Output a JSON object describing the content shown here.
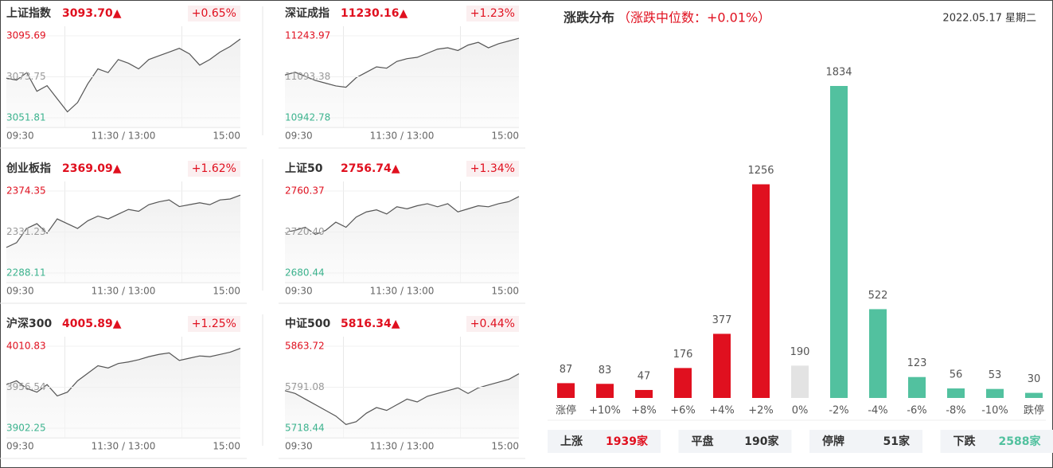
{
  "chart_data": [
    {
      "type": "line",
      "title": "上证指数",
      "price": "3093.70▲",
      "change": "+0.65%",
      "color": "#555555",
      "ylim": [
        3051.81,
        3095.69
      ],
      "yticks": [
        3051.81,
        3073.75,
        3095.69
      ],
      "xtick_labels": [
        "09:30",
        "11:30 / 13:00",
        "15:00"
      ],
      "values": [
        3073,
        3072,
        3076,
        3066,
        3069,
        3062,
        3055,
        3060,
        3070,
        3078,
        3076,
        3083,
        3081,
        3078,
        3083,
        3085,
        3087,
        3089,
        3086,
        3080,
        3083,
        3087,
        3090,
        3094
      ]
    },
    {
      "type": "line",
      "title": "深证成指",
      "price": "11230.16▲",
      "change": "+1.23%",
      "color": "#555555",
      "ylim": [
        10942.78,
        11243.97
      ],
      "yticks": [
        10942.78,
        11093.38,
        11243.97
      ],
      "xtick_labels": [
        "09:30",
        "11:30 / 13:00",
        "15:00"
      ],
      "values": [
        11100,
        11110,
        11095,
        11080,
        11070,
        11060,
        11055,
        11090,
        11110,
        11130,
        11125,
        11150,
        11160,
        11165,
        11180,
        11195,
        11200,
        11190,
        11210,
        11220,
        11200,
        11215,
        11225,
        11235
      ]
    },
    {
      "type": "line",
      "title": "创业板指",
      "price": "2369.09▲",
      "change": "+1.62%",
      "color": "#555555",
      "ylim": [
        2288.11,
        2374.35
      ],
      "yticks": [
        2288.11,
        2331.23,
        2374.35
      ],
      "xtick_labels": [
        "09:30",
        "11:30 / 13:00",
        "15:00"
      ],
      "values": [
        2315,
        2320,
        2335,
        2340,
        2330,
        2345,
        2340,
        2335,
        2343,
        2348,
        2345,
        2350,
        2355,
        2353,
        2360,
        2363,
        2365,
        2358,
        2360,
        2362,
        2360,
        2365,
        2366,
        2370
      ]
    },
    {
      "type": "line",
      "title": "上证50",
      "price": "2756.74▲",
      "change": "+1.34%",
      "color": "#555555",
      "ylim": [
        2680.44,
        2760.37
      ],
      "yticks": [
        2680.44,
        {
          "value": 2720.4,
          "label": "2720.40"
        },
        2760.37
      ],
      "xtick_labels": [
        "09:30",
        "11:30 / 13:00",
        "15:00"
      ],
      "values": [
        2720,
        2722,
        2725,
        2718,
        2722,
        2730,
        2725,
        2735,
        2740,
        2742,
        2738,
        2745,
        2743,
        2746,
        2748,
        2745,
        2748,
        2740,
        2743,
        2746,
        2745,
        2748,
        2750,
        2755
      ]
    },
    {
      "type": "line",
      "title": "沪深300",
      "price": "4005.89▲",
      "change": "+1.25%",
      "color": "#555555",
      "ylim": [
        3902.25,
        4010.83
      ],
      "yticks": [
        3902.25,
        3956.54,
        4010.83
      ],
      "xtick_labels": [
        "09:30",
        "11:30 / 13:00",
        "15:00"
      ],
      "values": [
        3960,
        3965,
        3955,
        3950,
        3960,
        3945,
        3950,
        3965,
        3975,
        3985,
        3982,
        3988,
        3990,
        3993,
        3997,
        4000,
        4002,
        3992,
        3995,
        3998,
        3997,
        4000,
        4003,
        4008
      ]
    },
    {
      "type": "line",
      "title": "中证500",
      "price": "5816.34▲",
      "change": "+0.44%",
      "color": "#555555",
      "ylim": [
        5718.44,
        5863.72
      ],
      "yticks": [
        5718.44,
        5791.08,
        5863.72
      ],
      "xtick_labels": [
        "09:30",
        "11:30 / 13:00",
        "15:00"
      ],
      "values": [
        5785,
        5780,
        5770,
        5760,
        5750,
        5740,
        5725,
        5730,
        5745,
        5755,
        5750,
        5760,
        5770,
        5765,
        5775,
        5780,
        5785,
        5790,
        5780,
        5790,
        5795,
        5800,
        5805,
        5815
      ]
    },
    {
      "type": "bar",
      "title": "涨跌分布",
      "subtitle": "（涨跌中位数：+0.01%）",
      "date": "2022.05.17 星期二",
      "categories": [
        "涨停",
        "+10%",
        "+8%",
        "+6%",
        "+4%",
        "+2%",
        "0%",
        "-2%",
        "-4%",
        "-6%",
        "-8%",
        "-10%",
        "跌停"
      ],
      "values": [
        87,
        83,
        47,
        176,
        377,
        1256,
        190,
        1834,
        522,
        123,
        56,
        53,
        30
      ],
      "colors": [
        "#e0101f",
        "#e0101f",
        "#e0101f",
        "#e0101f",
        "#e0101f",
        "#e0101f",
        "#e3e3e3",
        "#52c19f",
        "#52c19f",
        "#52c19f",
        "#52c19f",
        "#52c19f",
        "#52c19f"
      ]
    }
  ],
  "summary": [
    {
      "label": "上涨",
      "value": "1939家",
      "color": "#e0101f"
    },
    {
      "label": "平盘",
      "value": "190家",
      "color": "#333333"
    },
    {
      "label": "停牌",
      "value": "51家",
      "color": "#333333"
    },
    {
      "label": "下跌",
      "value": "2588家",
      "color": "#52c19f"
    }
  ]
}
